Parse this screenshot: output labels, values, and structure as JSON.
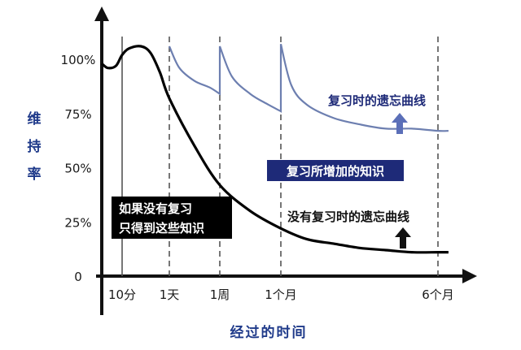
{
  "chart_data": {
    "type": "line",
    "title": "",
    "ylabel": "维持率",
    "xlabel": "经过的时间",
    "ylim": [
      0,
      110
    ],
    "y_ticks": [
      {
        "value": 0,
        "label": "0"
      },
      {
        "value": 25,
        "label": "25%"
      },
      {
        "value": 50,
        "label": "50%"
      },
      {
        "value": 75,
        "label": "75%"
      },
      {
        "value": 100,
        "label": "100%"
      }
    ],
    "x_ticks": [
      {
        "pos": 1,
        "label": "10分"
      },
      {
        "pos": 2,
        "label": "1天"
      },
      {
        "pos": 3,
        "label": "1周"
      },
      {
        "pos": 4,
        "label": "1个月"
      },
      {
        "pos": 7,
        "label": "6个月"
      }
    ],
    "series": [
      {
        "name": "没有复习时的遗忘曲线",
        "color": "#000000",
        "points": [
          [
            0,
            98
          ],
          [
            0.3,
            96
          ],
          [
            0.7,
            97
          ],
          [
            1,
            102
          ],
          [
            1.15,
            105
          ],
          [
            1.4,
            106
          ],
          [
            1.6,
            103
          ],
          [
            1.8,
            94
          ],
          [
            2,
            82
          ],
          [
            2.5,
            60
          ],
          [
            3,
            42
          ],
          [
            3.5,
            30
          ],
          [
            4,
            22
          ],
          [
            4.5,
            17
          ],
          [
            5,
            15
          ],
          [
            5.5,
            13
          ],
          [
            6,
            12
          ],
          [
            6.5,
            11
          ],
          [
            7,
            11
          ],
          [
            7.2,
            11
          ]
        ]
      },
      {
        "name": "复习时的遗忘曲线",
        "color": "#6d7fb0",
        "points": [
          [
            2,
            106
          ],
          [
            2.2,
            96
          ],
          [
            2.5,
            90
          ],
          [
            2.8,
            87
          ],
          [
            3,
            84
          ],
          [
            3,
            106
          ],
          [
            3.2,
            92
          ],
          [
            3.5,
            84
          ],
          [
            3.8,
            79
          ],
          [
            4,
            76
          ],
          [
            4,
            107
          ],
          [
            4.2,
            88
          ],
          [
            4.5,
            79
          ],
          [
            5,
            73
          ],
          [
            5.5,
            70
          ],
          [
            6,
            68
          ],
          [
            6.5,
            68
          ],
          [
            7,
            67
          ],
          [
            7.2,
            67
          ]
        ]
      }
    ],
    "annotations": {
      "review_curve_label": "复习时的遗忘曲线",
      "no_review_curve_label": "没有复习时的遗忘曲线",
      "gain_label": "复习所增加的知识",
      "no_review_box_line1": "如果没有复习",
      "no_review_box_line2": "只得到这些知识"
    },
    "colors": {
      "review": "#6d7fb0",
      "no_review": "#000000",
      "arrow_up_blue": "#5b6fb8",
      "label_box": "#000000",
      "gain_box": "#1e2a78"
    },
    "grid": false
  }
}
